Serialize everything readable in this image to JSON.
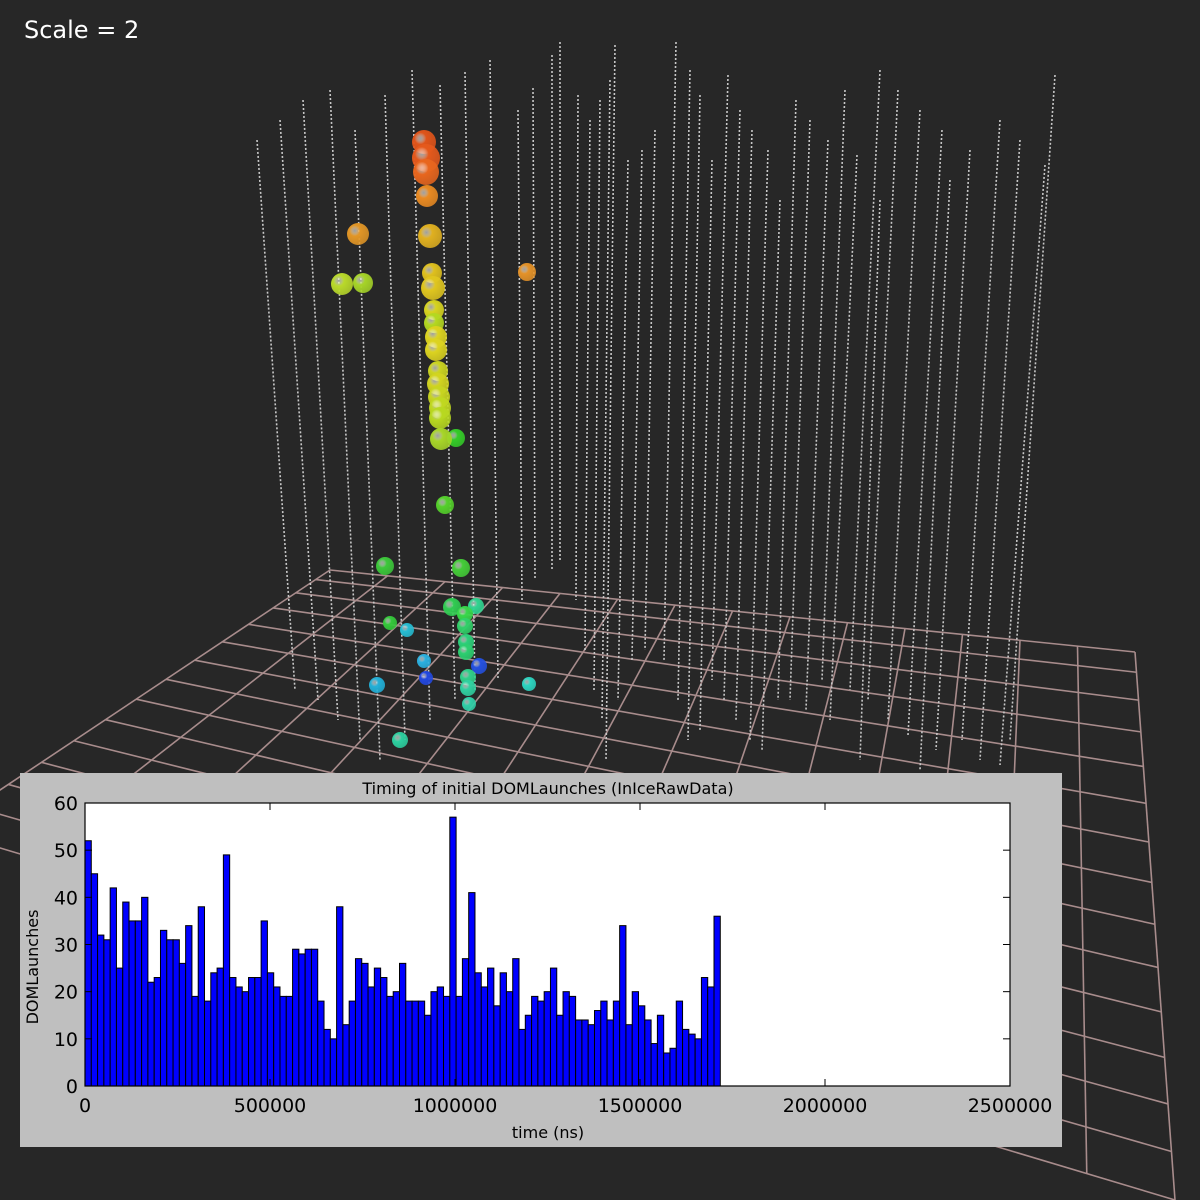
{
  "viewer": {
    "scale_label": "Scale = 2"
  },
  "colors": {
    "background": "#272727",
    "grid_line": "#a88c8c",
    "string_line": "#c8c8c8",
    "bar_fill": "#0000ff",
    "panel_bg": "#bfbfbf"
  },
  "chart_data": {
    "type": "bar",
    "title": "Timing of initial DOMLaunches (InIceRawData)",
    "xlabel": "time (ns)",
    "ylabel": "DOMLaunches",
    "xlim": [
      0,
      2500000
    ],
    "ylim": [
      0,
      60
    ],
    "xticks": [
      0,
      500000,
      1000000,
      1500000,
      2000000,
      2500000
    ],
    "xtick_labels": [
      "0",
      "500000",
      "1000000",
      "1500000",
      "2000000",
      "2500000"
    ],
    "yticks": [
      0,
      10,
      20,
      30,
      40,
      50,
      60
    ],
    "ytick_labels": [
      "0",
      "10",
      "20",
      "30",
      "40",
      "50",
      "60"
    ],
    "bin_start": 0,
    "bin_width": 17000,
    "values": [
      52,
      45,
      32,
      31,
      42,
      25,
      39,
      35,
      35,
      40,
      22,
      23,
      33,
      31,
      31,
      26,
      34,
      19,
      38,
      18,
      24,
      25,
      49,
      23,
      21,
      20,
      23,
      23,
      35,
      24,
      21,
      19,
      19,
      29,
      28,
      29,
      29,
      18,
      12,
      10,
      38,
      13,
      18,
      27,
      26,
      21,
      25,
      23,
      19,
      20,
      26,
      18,
      18,
      18,
      15,
      20,
      21,
      19,
      57,
      19,
      27,
      41,
      24,
      21,
      25,
      17,
      24,
      20,
      27,
      12,
      15,
      19,
      18,
      20,
      25,
      15,
      20,
      19,
      14,
      14,
      13,
      16,
      18,
      14,
      18,
      34,
      13,
      20,
      17,
      14,
      9,
      15,
      7,
      8,
      18,
      12,
      11,
      10,
      23,
      21,
      36
    ],
    "grid": false,
    "legend": "none"
  }
}
